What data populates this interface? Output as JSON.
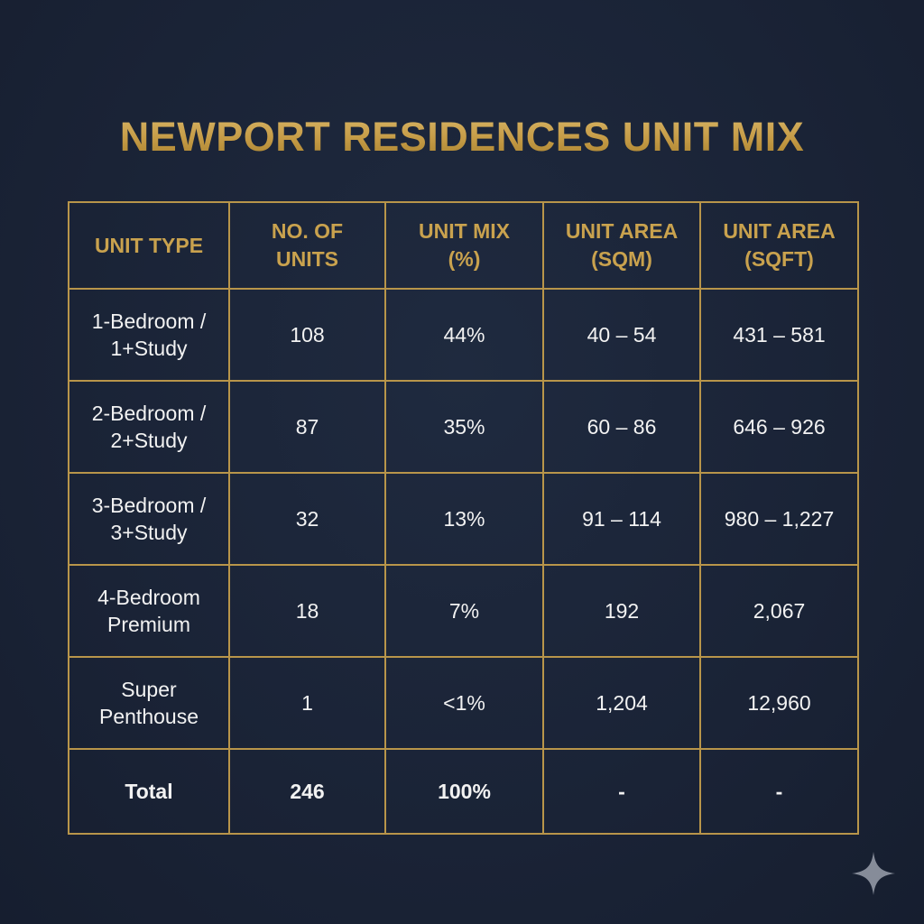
{
  "title": "NEWPORT RESIDENCES UNIT MIX",
  "table": {
    "headers": [
      "UNIT TYPE",
      "NO. OF\nUNITS",
      "UNIT MIX\n(%)",
      "UNIT AREA\n(SQM)",
      "UNIT AREA\n(SQFT)"
    ],
    "rows": [
      {
        "type": "1-Bedroom /\n1+Study",
        "units": "108",
        "mix": "44%",
        "sqm": "40 – 54",
        "sqft": "431 – 581"
      },
      {
        "type": "2-Bedroom /\n2+Study",
        "units": "87",
        "mix": "35%",
        "sqm": "60 – 86",
        "sqft": "646 – 926"
      },
      {
        "type": "3-Bedroom /\n3+Study",
        "units": "32",
        "mix": "13%",
        "sqm": "91 – 114",
        "sqft": "980 – 1,227"
      },
      {
        "type": "4-Bedroom\nPremium",
        "units": "18",
        "mix": "7%",
        "sqm": "192",
        "sqft": "2,067"
      },
      {
        "type": "Super\nPenthouse",
        "units": "1",
        "mix": "<1%",
        "sqm": "1,204",
        "sqft": "12,960"
      }
    ],
    "total": {
      "type": "Total",
      "units": "246",
      "mix": "100%",
      "sqm": "-",
      "sqft": "-"
    }
  },
  "colors": {
    "background": "#1b2538",
    "gold": "#c9a24e",
    "border": "#b8954a",
    "text": "#f2f2f2"
  },
  "icons": {
    "corner": "sparkle-icon"
  }
}
